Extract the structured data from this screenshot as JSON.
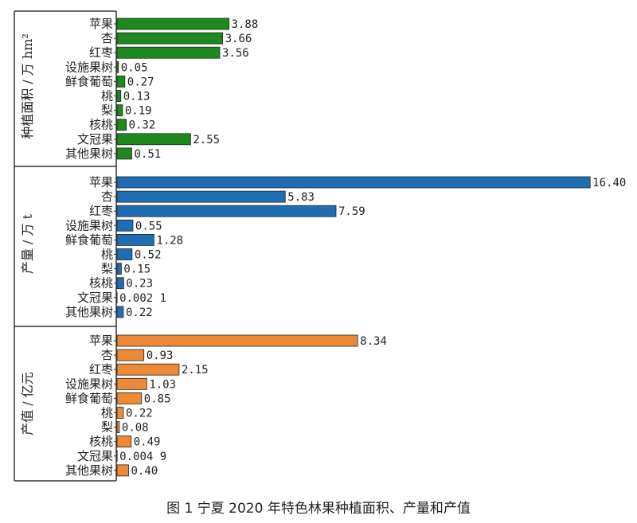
{
  "caption": "图 1 宁夏 2020 年特色林果种植面积、产量和产值",
  "chart_data": [
    {
      "type": "bar",
      "orientation": "horizontal",
      "ylabel": "种植面积 / 万 hm²",
      "color": "#1e8a1e",
      "categories": [
        "苹果",
        "杏",
        "红枣",
        "设施果树",
        "鲜食葡萄",
        "桃",
        "梨",
        "核桃",
        "文冠果",
        "其他果树"
      ],
      "values": [
        3.88,
        3.66,
        3.56,
        0.05,
        0.27,
        0.13,
        0.19,
        0.32,
        2.55,
        0.51
      ],
      "value_labels": [
        "3.88",
        "3.66",
        "3.56",
        "0.05",
        "0.27",
        "0.13",
        "0.19",
        "0.32",
        "2.55",
        "0.51"
      ]
    },
    {
      "type": "bar",
      "orientation": "horizontal",
      "ylabel": "产量 / 万 t",
      "color": "#1f6eb4",
      "categories": [
        "苹果",
        "杏",
        "红枣",
        "设施果树",
        "鲜食葡萄",
        "桃",
        "梨",
        "核桃",
        "文冠果",
        "其他果树"
      ],
      "values": [
        16.4,
        5.83,
        7.59,
        0.55,
        1.28,
        0.52,
        0.15,
        0.23,
        0.0021,
        0.22
      ],
      "value_labels": [
        "16.40",
        "5.83",
        "7.59",
        "0.55",
        "1.28",
        "0.52",
        "0.15",
        "0.23",
        "0.002 1",
        "0.22"
      ]
    },
    {
      "type": "bar",
      "orientation": "horizontal",
      "ylabel": "产值 / 亿元",
      "color": "#ee8a37",
      "categories": [
        "苹果",
        "杏",
        "红枣",
        "设施果树",
        "鲜食葡萄",
        "桃",
        "梨",
        "核桃",
        "文冠果",
        "其他果树"
      ],
      "values": [
        8.34,
        0.93,
        2.15,
        1.03,
        0.85,
        0.22,
        0.08,
        0.49,
        0.0049,
        0.4
      ],
      "value_labels": [
        "8.34",
        "0.93",
        "2.15",
        "1.03",
        "0.85",
        "0.22",
        "0.08",
        "0.49",
        "0.004 9",
        "0.40"
      ]
    }
  ]
}
